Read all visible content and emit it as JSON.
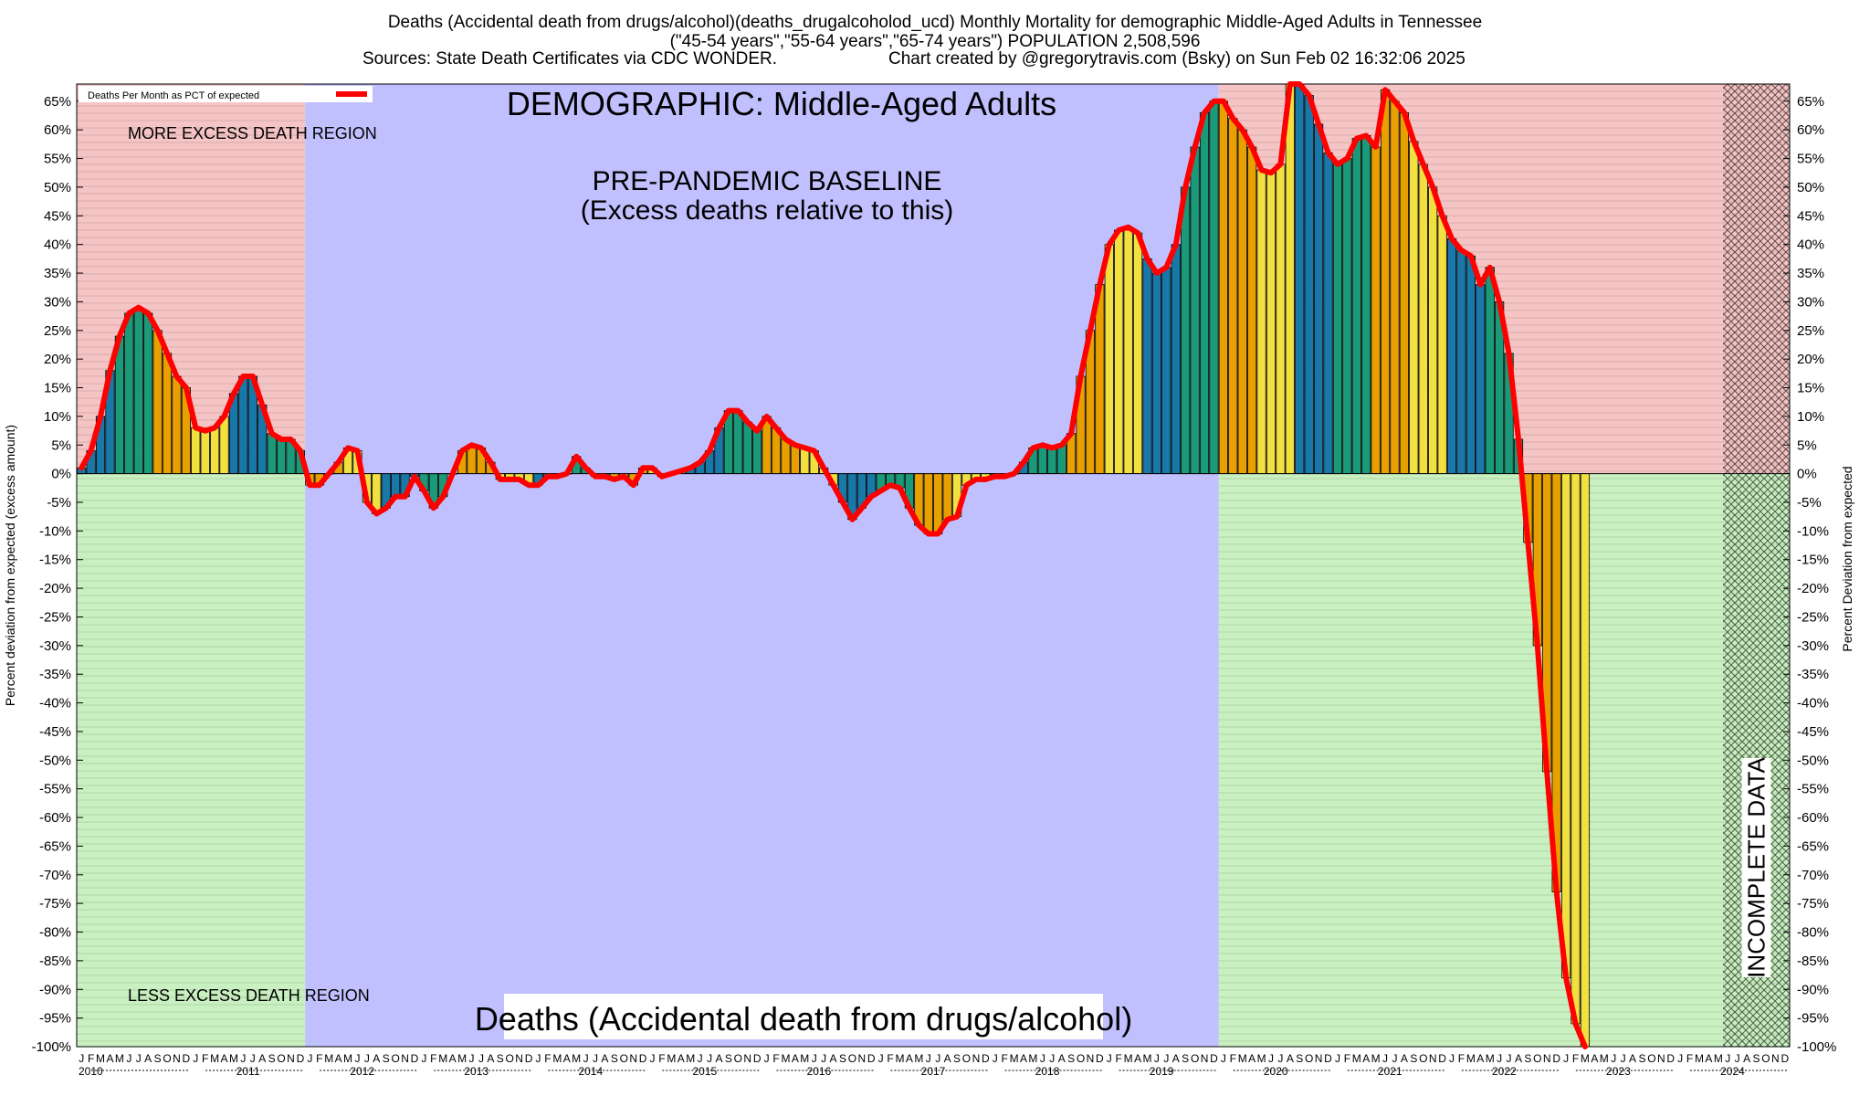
{
  "header": {
    "title": "Deaths (Accidental death from drugs/alcohol)(deaths_drugalcoholod_ucd) Monthly Mortality for demographic Middle-Aged Adults in Tennessee",
    "subtitle": "(\"45-54 years\",\"55-64 years\",\"65-74 years\") POPULATION 2,508,596",
    "sources": "Sources: State Death Certificates via CDC WONDER.",
    "credit": "Chart created by @gregorytravis.com (Bsky) on Sun Feb 02 16:32:06 2025"
  },
  "chart_data": {
    "type": "bar",
    "title": "DEMOGRAPHIC: Middle-Aged Adults",
    "bottom_label": "Deaths (Accidental death from drugs/alcohol)",
    "ylabel_left": "Percent deviation from expected (excess amount)",
    "ylabel_right": "Percent Deviation from expected",
    "ylim": [
      -100,
      68
    ],
    "yticks": [
      -100,
      -95,
      -90,
      -85,
      -80,
      -75,
      -70,
      -65,
      -60,
      -55,
      -50,
      -45,
      -40,
      -35,
      -30,
      -25,
      -20,
      -15,
      -10,
      -5,
      0,
      5,
      10,
      15,
      20,
      25,
      30,
      35,
      40,
      45,
      50,
      55,
      60,
      65
    ],
    "legend": {
      "label": "Deaths Per Month as PCT of expected",
      "position": "top-left"
    },
    "annotations": {
      "more_excess": "MORE EXCESS DEATH REGION",
      "less_excess": "LESS EXCESS DEATH REGION",
      "baseline_line1": "PRE-PANDEMIC BASELINE",
      "baseline_line2": "(Excess deaths relative to this)",
      "incomplete": "INCOMPLETE DATA"
    },
    "month_letters": [
      "J",
      "F",
      "M",
      "A",
      "M",
      "J",
      "J",
      "A",
      "S",
      "O",
      "N",
      "D"
    ],
    "years": [
      "2010",
      "2011",
      "2012",
      "2013",
      "2014",
      "2015",
      "2016",
      "2017",
      "2018",
      "2019",
      "2020",
      "2021",
      "2022",
      "2023",
      "2024"
    ],
    "start": "2010-01",
    "baseline_period": [
      "2012-01",
      "2019-12"
    ],
    "incomplete_from": "2024-06",
    "series": [
      {
        "name": "Deaths Per Month as PCT of expected",
        "color": "#ff0000",
        "values": [
          1,
          4,
          10,
          18,
          24,
          28,
          29,
          28,
          25,
          21,
          17,
          15,
          8,
          7.5,
          8,
          10,
          14,
          17,
          17,
          12,
          7,
          6,
          6,
          4,
          -2,
          -2,
          0,
          2,
          4.5,
          4,
          -5,
          -7,
          -6,
          -4,
          -4,
          -0.5,
          -3,
          -6,
          -4,
          0,
          4,
          5,
          4.5,
          2,
          -1,
          -1,
          -1,
          -2,
          -2,
          -0.5,
          -0.5,
          0,
          3,
          1,
          -0.5,
          -0.5,
          -1,
          -0.5,
          -2,
          1,
          1,
          -0.5,
          0,
          0.5,
          1,
          2,
          4,
          8,
          11,
          11,
          9,
          7.5,
          10,
          8,
          6,
          5,
          4.5,
          4,
          1,
          -2,
          -5,
          -8,
          -6,
          -4,
          -3,
          -2,
          -2.5,
          -6,
          -9,
          -10.5,
          -10.5,
          -8,
          -7.5,
          -2,
          -1,
          -1,
          -0.5,
          -0.5,
          0,
          2,
          4.5,
          5,
          4.5,
          5,
          7,
          17,
          25,
          33,
          40,
          42.5,
          43,
          42,
          37.5,
          35,
          36,
          40,
          50,
          57,
          63,
          65,
          65,
          62,
          60,
          57,
          53,
          52.5,
          54,
          68,
          68,
          66,
          61,
          56,
          54,
          55,
          58.5,
          59,
          57,
          67,
          65,
          63,
          58,
          54,
          50,
          45,
          41,
          39,
          38,
          33,
          36,
          30,
          21,
          6,
          -12,
          -30,
          -52,
          -73,
          -88,
          -96,
          -100
        ]
      }
    ]
  },
  "colors": {
    "excess_region": "#f5c4c4",
    "less_region": "#c9f0c0",
    "baseline_region": "#c0c0ff",
    "line": "#ff0000",
    "bar_palette": [
      "#1878a8",
      "#1a9a78",
      "#e8a000",
      "#f2e040"
    ]
  }
}
